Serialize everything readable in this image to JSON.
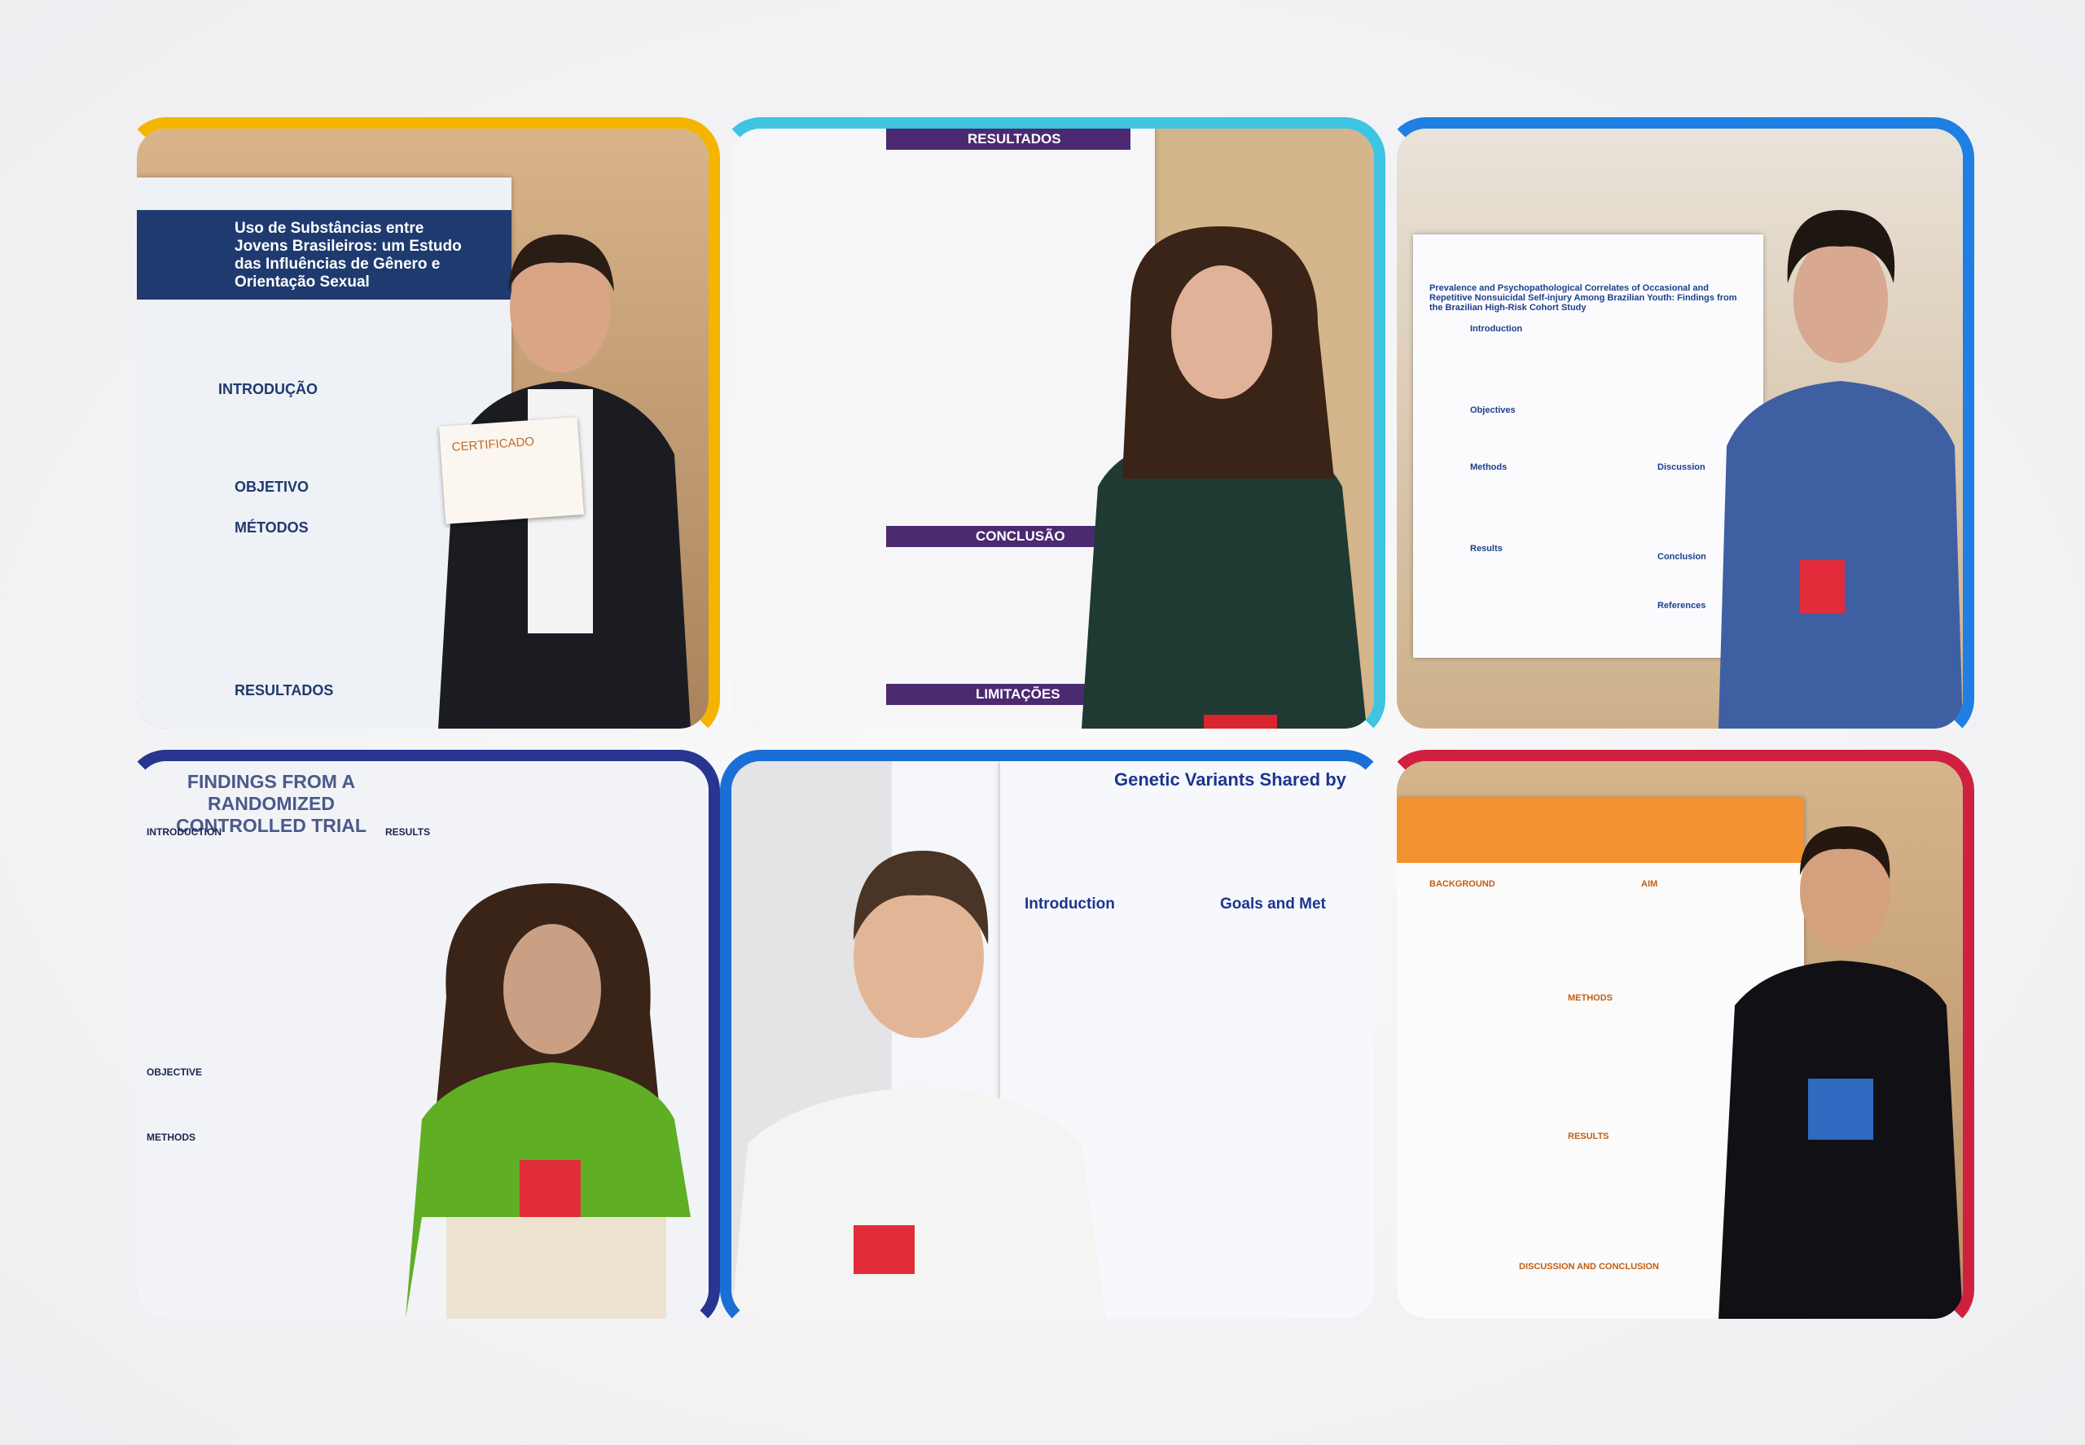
{
  "tiles": [
    {
      "texts": [
        "Uso de Substâncias entre Jovens Brasileiros: um Estudo das Influências de Gênero e Orientação Sexual",
        "INTRODUÇÃO",
        "OBJETIVO",
        "MÉTODOS",
        "RESULTADOS",
        "CERTIFICADO"
      ]
    },
    {
      "texts": [
        "RESULTADOS",
        "CONCLUSÃO",
        "LIMITAÇÕES"
      ]
    },
    {
      "texts": [
        "Prevalence and Psychopathological Correlates of Occasional and Repetitive Nonsuicidal Self-injury Among Brazilian Youth: Findings from the Brazilian High-Risk Cohort Study",
        "Introduction",
        "Objectives",
        "Methods",
        "Results",
        "Discussion",
        "Conclusion",
        "References"
      ]
    },
    {
      "texts": [
        "FINDINGS FROM A RANDOMIZED CONTROLLED TRIAL",
        "INTRODUCTION",
        "RESULTS",
        "OBJECTIVE",
        "METHODS"
      ]
    },
    {
      "texts": [
        "Genetic Variants Shared by",
        "Introduction",
        "Goals and Met"
      ]
    },
    {
      "texts": [
        "BACKGROUND",
        "AIM",
        "METHODS",
        "RESULTS",
        "DISCUSSION AND CONCLUSION"
      ]
    }
  ]
}
